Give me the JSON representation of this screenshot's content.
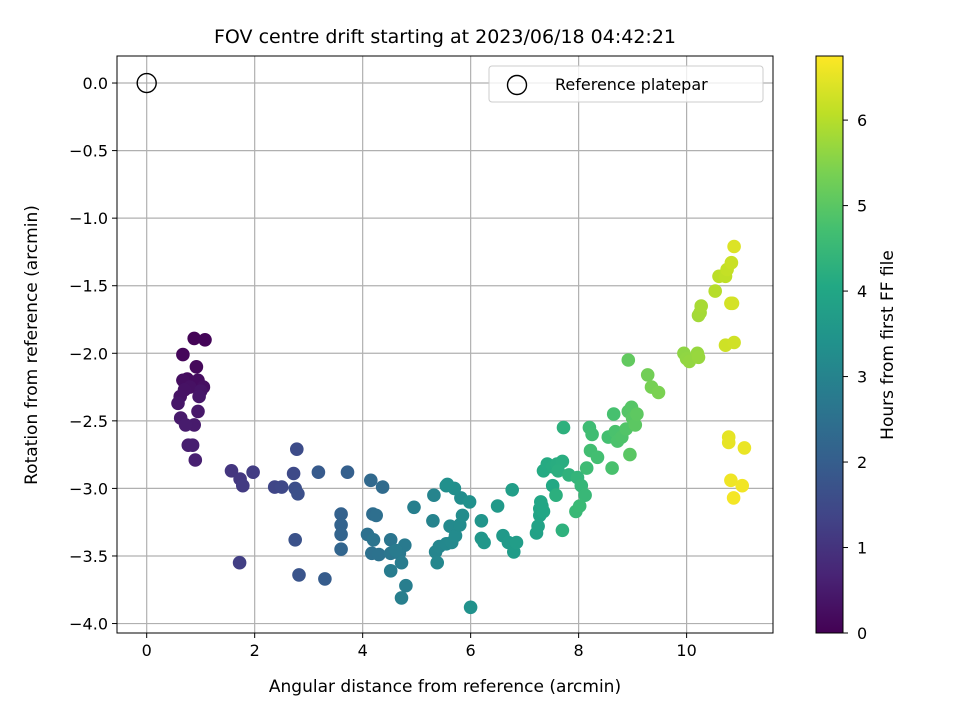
{
  "chart_data": {
    "type": "scatter",
    "title": "FOV centre drift starting at 2023/06/18 04:42:21",
    "xlabel": "Angular distance from reference (arcmin)",
    "ylabel": "Rotation from reference (arcmin)",
    "xlim": [
      -0.55,
      11.6
    ],
    "ylim": [
      -4.07,
      0.2
    ],
    "xticks": [
      0,
      2,
      4,
      6,
      8,
      10
    ],
    "yticks": [
      0.0,
      -0.5,
      -1.0,
      -1.5,
      -2.0,
      -2.5,
      -3.0,
      -3.5,
      -4.0
    ],
    "xtick_labels": [
      "0",
      "2",
      "4",
      "6",
      "8",
      "10"
    ],
    "ytick_labels": [
      "0.0",
      "−0.5",
      "−1.0",
      "−1.5",
      "−2.0",
      "−2.5",
      "−3.0",
      "−3.5",
      "−4.0"
    ],
    "grid": true,
    "colormap": "viridis",
    "colorbar": {
      "label": "Hours from first FF file",
      "range": [
        0,
        6.75
      ],
      "ticks": [
        0,
        1,
        2,
        3,
        4,
        5,
        6
      ],
      "tick_labels": [
        "0",
        "1",
        "2",
        "3",
        "4",
        "5",
        "6"
      ]
    },
    "reference": {
      "name": "Reference platepar",
      "x": 0.0,
      "y": 0.0,
      "marker": "open-circle"
    },
    "legend": {
      "location": "top-right",
      "entries": [
        "Reference platepar"
      ]
    },
    "points": [
      [
        0.88,
        -1.89,
        0.05
      ],
      [
        1.08,
        -1.9,
        0.08
      ],
      [
        0.67,
        -2.01,
        0.12
      ],
      [
        0.92,
        -2.1,
        0.15
      ],
      [
        0.75,
        -2.19,
        0.2
      ],
      [
        0.95,
        -2.2,
        0.22
      ],
      [
        0.67,
        -2.2,
        0.25
      ],
      [
        1.05,
        -2.25,
        0.27
      ],
      [
        0.8,
        -2.25,
        0.3
      ],
      [
        0.7,
        -2.27,
        0.32
      ],
      [
        0.62,
        -2.32,
        0.35
      ],
      [
        1.0,
        -2.28,
        0.37
      ],
      [
        0.58,
        -2.37,
        0.4
      ],
      [
        0.97,
        -2.32,
        0.42
      ],
      [
        0.95,
        -2.43,
        0.45
      ],
      [
        0.63,
        -2.48,
        0.48
      ],
      [
        0.88,
        -2.53,
        0.5
      ],
      [
        0.72,
        -2.53,
        0.52
      ],
      [
        0.77,
        -2.68,
        0.55
      ],
      [
        0.85,
        -2.68,
        0.58
      ],
      [
        0.9,
        -2.79,
        0.6
      ],
      [
        1.57,
        -2.87,
        1.05
      ],
      [
        1.73,
        -2.93,
        1.1
      ],
      [
        1.78,
        -2.98,
        1.15
      ],
      [
        1.97,
        -2.88,
        1.2
      ],
      [
        1.72,
        -3.55,
        1.25
      ],
      [
        2.37,
        -2.99,
        1.4
      ],
      [
        2.5,
        -2.99,
        1.45
      ],
      [
        2.72,
        -2.89,
        1.5
      ],
      [
        2.78,
        -2.71,
        1.55
      ],
      [
        2.75,
        -3.0,
        1.6
      ],
      [
        2.8,
        -3.04,
        1.65
      ],
      [
        2.75,
        -3.38,
        1.7
      ],
      [
        2.82,
        -3.64,
        1.75
      ],
      [
        3.18,
        -2.88,
        1.9
      ],
      [
        3.3,
        -3.67,
        1.95
      ],
      [
        3.72,
        -2.88,
        2.05
      ],
      [
        3.6,
        -3.19,
        2.1
      ],
      [
        3.6,
        -3.27,
        2.12
      ],
      [
        3.6,
        -3.34,
        2.15
      ],
      [
        3.6,
        -3.45,
        2.2
      ],
      [
        4.15,
        -2.94,
        2.3
      ],
      [
        4.37,
        -2.99,
        2.35
      ],
      [
        4.19,
        -3.19,
        2.4
      ],
      [
        4.25,
        -3.2,
        2.45
      ],
      [
        4.09,
        -3.34,
        2.5
      ],
      [
        4.17,
        -3.48,
        2.52
      ],
      [
        4.3,
        -3.49,
        2.55
      ],
      [
        4.2,
        -3.38,
        2.6
      ],
      [
        4.52,
        -3.38,
        2.62
      ],
      [
        4.52,
        -3.48,
        2.65
      ],
      [
        4.62,
        -3.47,
        2.7
      ],
      [
        4.68,
        -3.48,
        2.72
      ],
      [
        4.78,
        -3.42,
        2.75
      ],
      [
        4.62,
        -3.46,
        2.78
      ],
      [
        4.72,
        -3.55,
        2.8
      ],
      [
        4.52,
        -3.61,
        2.82
      ],
      [
        4.8,
        -3.72,
        2.85
      ],
      [
        4.72,
        -3.81,
        2.88
      ],
      [
        4.95,
        -3.14,
        2.9
      ],
      [
        5.3,
        -3.24,
        3.0
      ],
      [
        5.32,
        -3.05,
        3.02
      ],
      [
        5.35,
        -3.47,
        3.05
      ],
      [
        5.42,
        -3.43,
        3.08
      ],
      [
        5.38,
        -3.55,
        3.1
      ],
      [
        5.55,
        -3.41,
        3.12
      ],
      [
        5.65,
        -3.4,
        3.15
      ],
      [
        5.62,
        -3.28,
        3.18
      ],
      [
        5.72,
        -3.35,
        3.2
      ],
      [
        5.8,
        -3.27,
        3.22
      ],
      [
        5.85,
        -3.2,
        3.25
      ],
      [
        5.82,
        -3.07,
        3.28
      ],
      [
        5.55,
        -2.98,
        3.3
      ],
      [
        5.7,
        -3.0,
        3.32
      ],
      [
        5.57,
        -2.97,
        3.35
      ],
      [
        5.98,
        -3.1,
        3.38
      ],
      [
        6.0,
        -3.88,
        3.4
      ],
      [
        6.2,
        -3.24,
        3.5
      ],
      [
        6.2,
        -3.37,
        3.52
      ],
      [
        6.25,
        -3.4,
        3.55
      ],
      [
        6.5,
        -3.13,
        3.6
      ],
      [
        6.6,
        -3.35,
        3.62
      ],
      [
        6.7,
        -3.4,
        3.65
      ],
      [
        6.8,
        -3.47,
        3.7
      ],
      [
        6.85,
        -3.4,
        3.72
      ],
      [
        6.77,
        -3.01,
        3.75
      ],
      [
        7.22,
        -3.33,
        3.85
      ],
      [
        7.25,
        -3.28,
        3.88
      ],
      [
        7.28,
        -3.2,
        3.9
      ],
      [
        7.32,
        -3.13,
        3.92
      ],
      [
        7.28,
        -3.15,
        3.95
      ],
      [
        7.35,
        -3.17,
        3.98
      ],
      [
        7.3,
        -3.1,
        4.0
      ],
      [
        7.52,
        -2.98,
        4.05
      ],
      [
        7.35,
        -2.87,
        4.1
      ],
      [
        7.42,
        -2.82,
        4.12
      ],
      [
        7.52,
        -2.84,
        4.15
      ],
      [
        7.6,
        -2.82,
        4.18
      ],
      [
        7.7,
        -2.8,
        4.2
      ],
      [
        7.62,
        -2.87,
        4.22
      ],
      [
        7.58,
        -3.05,
        4.25
      ],
      [
        7.72,
        -2.55,
        4.28
      ],
      [
        7.7,
        -3.31,
        4.3
      ],
      [
        7.82,
        -2.9,
        4.32
      ],
      [
        7.98,
        -2.92,
        4.4
      ],
      [
        8.05,
        -2.98,
        4.45
      ],
      [
        8.12,
        -3.05,
        4.5
      ],
      [
        7.95,
        -3.17,
        4.52
      ],
      [
        8.02,
        -3.13,
        4.55
      ],
      [
        8.15,
        -2.85,
        4.6
      ],
      [
        8.2,
        -2.55,
        4.62
      ],
      [
        8.25,
        -2.6,
        4.65
      ],
      [
        8.22,
        -2.72,
        4.68
      ],
      [
        8.35,
        -2.77,
        4.7
      ],
      [
        8.55,
        -2.62,
        4.72
      ],
      [
        8.65,
        -2.45,
        4.75
      ],
      [
        8.62,
        -2.85,
        4.78
      ],
      [
        8.68,
        -2.58,
        4.8
      ],
      [
        8.72,
        -2.65,
        4.82
      ],
      [
        8.8,
        -2.62,
        4.85
      ],
      [
        8.88,
        -2.56,
        4.9
      ],
      [
        8.92,
        -2.43,
        4.92
      ],
      [
        8.98,
        -2.4,
        4.95
      ],
      [
        9.0,
        -2.48,
        4.98
      ],
      [
        8.95,
        -2.75,
        5.0
      ],
      [
        9.05,
        -2.53,
        5.02
      ],
      [
        9.08,
        -2.45,
        5.05
      ],
      [
        8.92,
        -2.05,
        5.1
      ],
      [
        9.28,
        -2.16,
        5.3
      ],
      [
        9.35,
        -2.25,
        5.35
      ],
      [
        9.48,
        -2.29,
        5.4
      ],
      [
        9.95,
        -2.0,
        5.6
      ],
      [
        10.0,
        -2.04,
        5.62
      ],
      [
        10.05,
        -2.06,
        5.65
      ],
      [
        10.2,
        -2.0,
        5.68
      ],
      [
        10.22,
        -2.03,
        5.7
      ],
      [
        10.22,
        -1.72,
        5.8
      ],
      [
        10.25,
        -1.7,
        5.82
      ],
      [
        10.27,
        -1.65,
        5.85
      ],
      [
        10.53,
        -1.54,
        6.0
      ],
      [
        10.6,
        -1.43,
        6.05
      ],
      [
        10.72,
        -1.43,
        6.1
      ],
      [
        10.75,
        -1.38,
        6.15
      ],
      [
        10.83,
        -1.33,
        6.2
      ],
      [
        10.72,
        -1.94,
        6.25
      ],
      [
        10.88,
        -1.92,
        6.28
      ],
      [
        10.82,
        -1.63,
        6.3
      ],
      [
        10.85,
        -1.63,
        6.32
      ],
      [
        10.88,
        -1.21,
        6.4
      ],
      [
        10.78,
        -2.62,
        6.5
      ],
      [
        10.78,
        -2.66,
        6.52
      ],
      [
        11.07,
        -2.7,
        6.55
      ],
      [
        10.82,
        -2.94,
        6.6
      ],
      [
        11.03,
        -2.98,
        6.62
      ],
      [
        10.87,
        -3.07,
        6.65
      ]
    ]
  }
}
